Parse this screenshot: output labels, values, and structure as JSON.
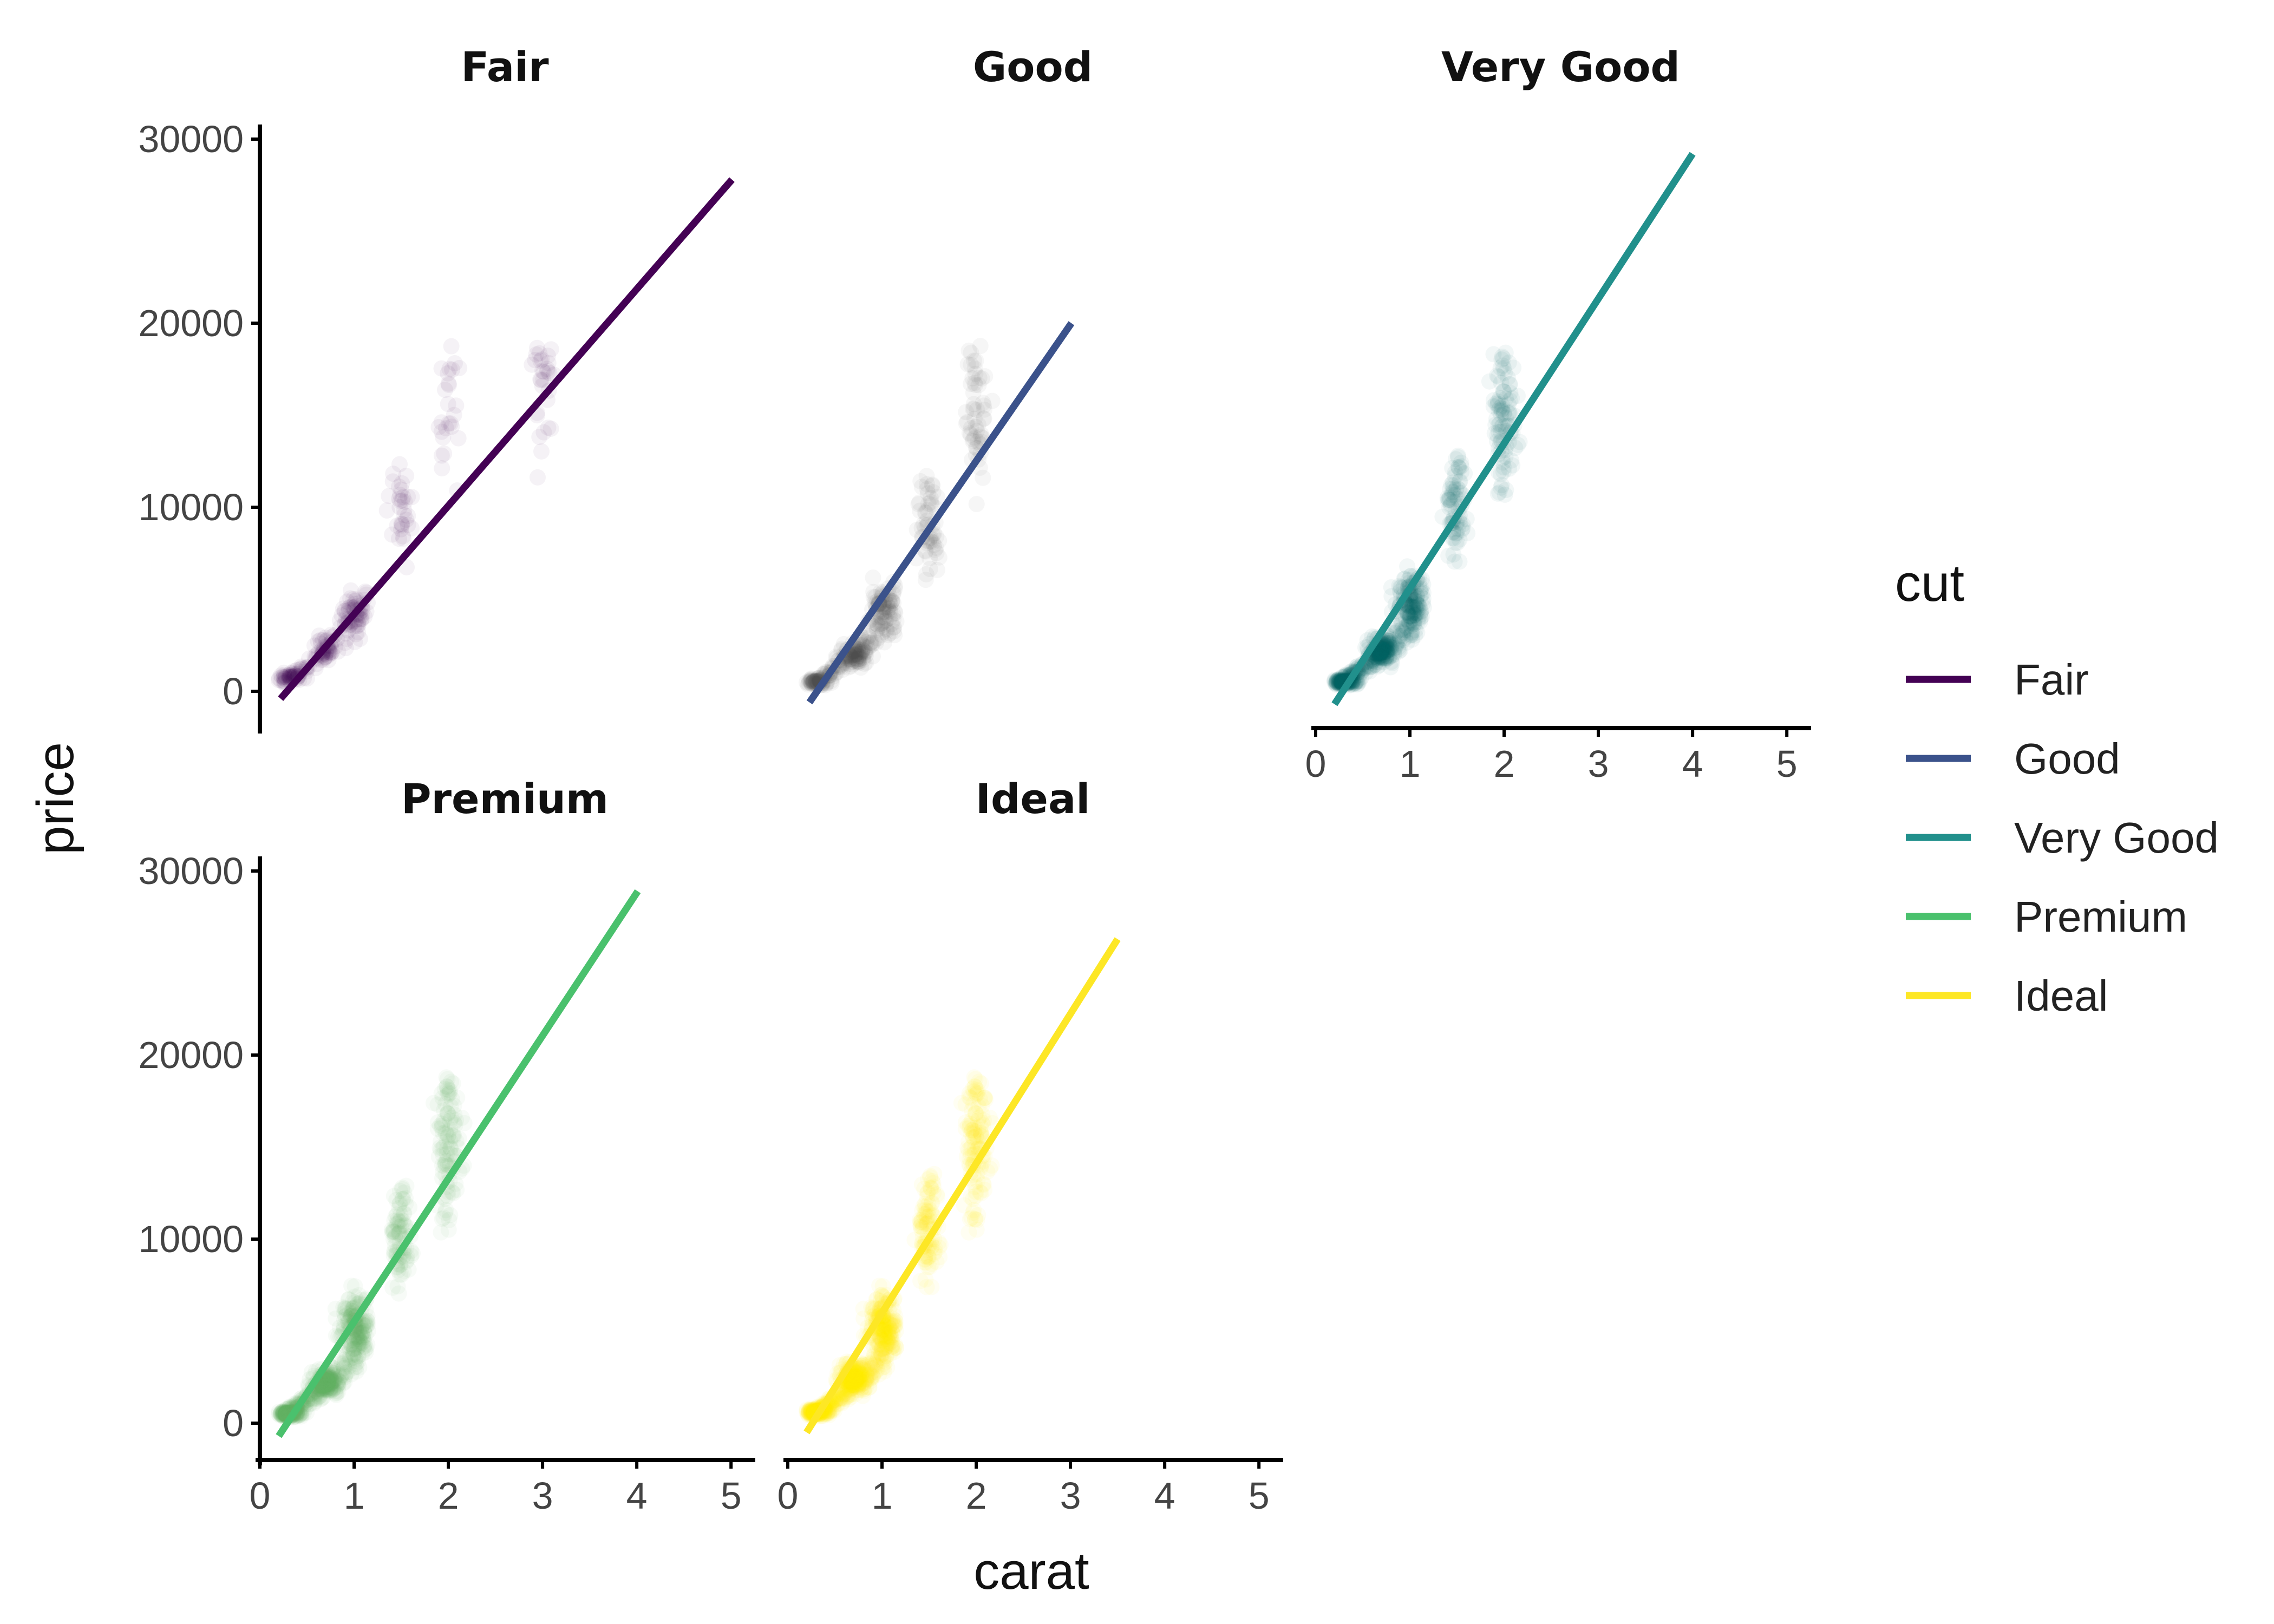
{
  "chart_data": {
    "type": "scatter",
    "facet_by": "cut",
    "xlabel": "carat",
    "ylabel": "price",
    "xlim": [
      0,
      5.2
    ],
    "ylim": [
      -2000,
      30500
    ],
    "x_ticks": [
      "0",
      "1",
      "2",
      "3",
      "4",
      "5"
    ],
    "y_ticks": [
      "0",
      "10000",
      "20000",
      "30000"
    ],
    "legend": {
      "title": "cut",
      "placement": "right",
      "entries": [
        "Fair",
        "Good",
        "Very Good",
        "Premium",
        "Ideal"
      ]
    },
    "panels": [
      {
        "name": "Fair",
        "line_color": "#440154",
        "point_color": "#440154",
        "fit": {
          "x": [
            0.22,
            5.01
          ],
          "y": [
            -400,
            27800
          ]
        },
        "point_density": 0.18,
        "clusters": [
          [
            0.3,
            800
          ],
          [
            0.7,
            2200
          ],
          [
            1.0,
            4200
          ],
          [
            1.5,
            9500
          ],
          [
            2.0,
            15000
          ],
          [
            3.0,
            17000
          ]
        ]
      },
      {
        "name": "Good",
        "line_color": "#3B528B",
        "point_color": "#555555",
        "fit": {
          "x": [
            0.23,
            3.01
          ],
          "y": [
            -600,
            20000
          ]
        },
        "point_density": 0.35,
        "clusters": [
          [
            0.3,
            500
          ],
          [
            0.7,
            2000
          ],
          [
            1.0,
            4500
          ],
          [
            1.5,
            9000
          ],
          [
            2.0,
            15000
          ]
        ]
      },
      {
        "name": "Very Good",
        "line_color": "#21908C",
        "point_color": "#006060",
        "fit": {
          "x": [
            0.2,
            4.0
          ],
          "y": [
            -700,
            29200
          ]
        },
        "point_density": 0.7,
        "clusters": [
          [
            0.3,
            500
          ],
          [
            0.7,
            2200
          ],
          [
            1.0,
            5000
          ],
          [
            1.5,
            10000
          ],
          [
            2.0,
            15000
          ]
        ]
      },
      {
        "name": "Premium",
        "line_color": "#4AC16D",
        "point_color": "#5AAE5A",
        "fit": {
          "x": [
            0.2,
            4.01
          ],
          "y": [
            -700,
            28900
          ]
        },
        "point_density": 0.8,
        "clusters": [
          [
            0.3,
            500
          ],
          [
            0.7,
            2200
          ],
          [
            1.0,
            5500
          ],
          [
            1.5,
            10000
          ],
          [
            2.0,
            15500
          ]
        ]
      },
      {
        "name": "Ideal",
        "line_color": "#FDE725",
        "point_color": "#FFF200",
        "fit": {
          "x": [
            0.2,
            3.5
          ],
          "y": [
            -500,
            26300
          ]
        },
        "point_density": 1.0,
        "clusters": [
          [
            0.3,
            600
          ],
          [
            0.7,
            2500
          ],
          [
            1.0,
            5500
          ],
          [
            1.5,
            10500
          ],
          [
            2.0,
            15500
          ]
        ]
      }
    ]
  }
}
